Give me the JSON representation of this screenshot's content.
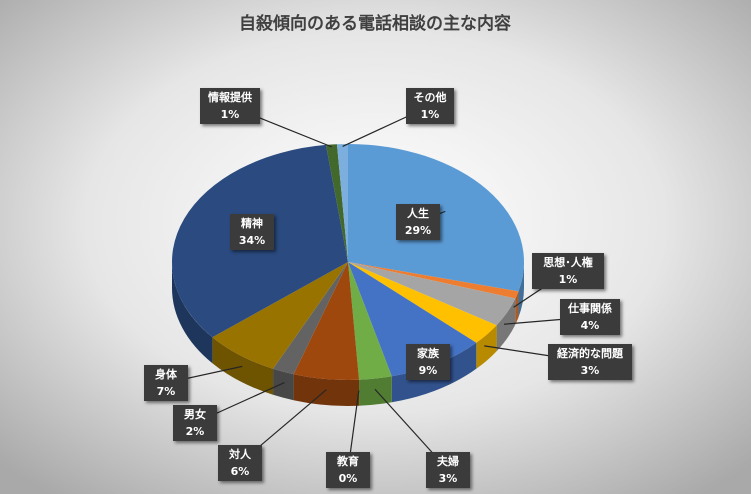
{
  "chart_data": {
    "type": "pie",
    "title": "自殺傾向のある電話相談の主な内容",
    "categories": [
      "人生",
      "思想･人権",
      "仕事関係",
      "経済的な問題",
      "家族",
      "夫婦",
      "教育",
      "対人",
      "男女",
      "身体",
      "精神",
      "情報提供",
      "その他"
    ],
    "values": [
      29,
      1,
      4,
      3,
      9,
      3,
      0,
      6,
      2,
      7,
      34,
      1,
      1
    ],
    "value_labels": [
      "29%",
      "1%",
      "4%",
      "3%",
      "9%",
      "3%",
      "0%",
      "6%",
      "2%",
      "7%",
      "34%",
      "1%",
      "1%"
    ],
    "colors": [
      "#5b9bd5",
      "#ed7d31",
      "#a5a5a5",
      "#ffc000",
      "#4472c4",
      "#70ad47",
      "#264478",
      "#9e480e",
      "#636363",
      "#997300",
      "#2a4a80",
      "#43682b",
      "#7cafdd"
    ]
  }
}
